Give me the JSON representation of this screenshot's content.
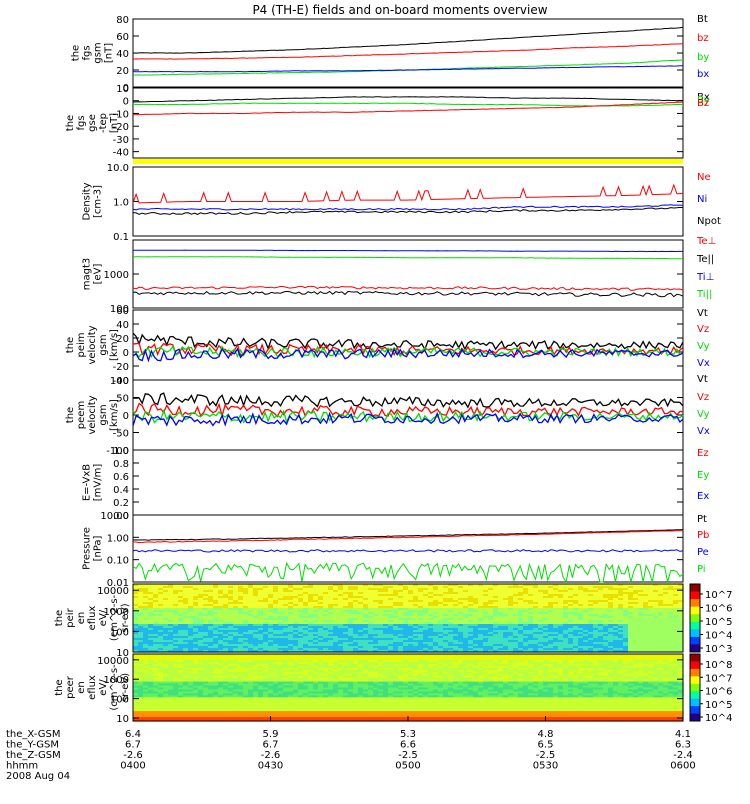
{
  "title": "P4 (TH-E) fields and on-board moments overview",
  "colors": {
    "black": "#000000",
    "red": "#ff0000",
    "green": "#00dd00",
    "blue": "#0000ff",
    "yellow": "#ffff00"
  },
  "chart_data": [
    {
      "type": "line",
      "panel": "fgs_gsm",
      "ylabel": [
        "the",
        "fgs",
        "gsm",
        "[nT]"
      ],
      "ylim": [
        0,
        80
      ],
      "ticks": [
        "80",
        "60",
        "40",
        "20",
        "0"
      ],
      "series": [
        {
          "name": "Bt",
          "color": "black",
          "values": [
            40,
            40,
            42,
            44,
            47,
            50,
            54,
            58,
            62,
            66,
            70
          ]
        },
        {
          "name": "bz",
          "color": "red",
          "values": [
            33,
            33,
            34,
            35,
            37,
            39,
            41,
            43,
            46,
            48,
            51
          ]
        },
        {
          "name": "by",
          "color": "green",
          "values": [
            14,
            15,
            16,
            17,
            18,
            20,
            22,
            24,
            26,
            28,
            32
          ]
        },
        {
          "name": "bx",
          "color": "blue",
          "values": [
            18,
            18,
            18,
            19,
            19,
            20,
            21,
            22,
            23,
            24,
            25
          ]
        }
      ]
    },
    {
      "type": "line",
      "panel": "fgs_gse",
      "ylabel": [
        "the",
        "fgs",
        "gse",
        "-tep",
        "[nT]"
      ],
      "ylim": [
        -45,
        10
      ],
      "ticks": [
        "10",
        "0",
        "-10",
        "-20",
        "-30",
        "-40"
      ],
      "series": [
        {
          "name": "Bx",
          "color": "black",
          "values": [
            -1,
            0,
            1,
            2,
            3,
            3,
            3,
            2,
            2,
            1,
            0
          ]
        },
        {
          "name": "By",
          "color": "green",
          "values": [
            -3,
            -3,
            -2,
            -2,
            -2,
            -2,
            -3,
            -3,
            -4,
            -4,
            -3
          ]
        },
        {
          "name": "Bz",
          "color": "red",
          "values": [
            -11,
            -10,
            -10,
            -9,
            -9,
            -8,
            -7,
            -6,
            -5,
            -3,
            -1
          ]
        }
      ]
    },
    {
      "type": "line",
      "panel": "density",
      "ylabel": [
        "Density",
        "[cm-3]"
      ],
      "ylog": true,
      "ylim": [
        0.1,
        10
      ],
      "ticks": [
        "10.0",
        "1.0",
        "0.1"
      ],
      "series": [
        {
          "name": "Ne",
          "color": "red",
          "values": [
            0.9,
            1.0,
            1.0,
            1.0,
            1.1,
            1.1,
            1.2,
            1.3,
            1.4,
            1.5,
            1.7
          ]
        },
        {
          "name": "Ni",
          "color": "blue",
          "values": [
            0.6,
            0.6,
            0.6,
            0.6,
            0.6,
            0.6,
            0.6,
            0.7,
            0.7,
            0.7,
            0.8
          ]
        },
        {
          "name": "Npot",
          "color": "black",
          "values": [
            0.45,
            0.45,
            0.45,
            0.5,
            0.5,
            0.5,
            0.5,
            0.55,
            0.55,
            0.6,
            0.65
          ]
        }
      ]
    },
    {
      "type": "line",
      "panel": "temperature",
      "ylabel": [
        "magt3",
        "[eV]"
      ],
      "ylog": true,
      "ylim": [
        100,
        10000
      ],
      "ticks": [
        "1000",
        "100"
      ],
      "series": [
        {
          "name": "Te⊥",
          "color": "red",
          "values": [
            380,
            390,
            400,
            410,
            400,
            390,
            390,
            380,
            370,
            360,
            350
          ]
        },
        {
          "name": "Te||",
          "color": "black",
          "values": [
            270,
            280,
            280,
            280,
            280,
            270,
            270,
            260,
            250,
            250,
            240
          ]
        },
        {
          "name": "Ti⊥",
          "color": "blue",
          "values": [
            5000,
            5000,
            5000,
            4900,
            4900,
            4800,
            4800,
            4700,
            4700,
            4600,
            4600
          ]
        },
        {
          "name": "Ti||",
          "color": "green",
          "values": [
            3200,
            3200,
            3200,
            3100,
            3100,
            3000,
            3000,
            3000,
            2900,
            2900,
            2800
          ]
        }
      ]
    },
    {
      "type": "line",
      "panel": "peim_velocity",
      "ylabel": [
        "the",
        "peim",
        "velocity",
        "gsm",
        "[km/s]"
      ],
      "ylim": [
        -40,
        60
      ],
      "ticks": [
        "60",
        "40",
        "20",
        "0",
        "-20",
        "-40"
      ],
      "series": [
        {
          "name": "Vt",
          "color": "black",
          "values": [
            20,
            15,
            12,
            12,
            11,
            10,
            10,
            10,
            10,
            10,
            10
          ]
        },
        {
          "name": "Vz",
          "color": "red",
          "values": [
            5,
            4,
            3,
            3,
            3,
            2,
            2,
            2,
            2,
            2,
            2
          ]
        },
        {
          "name": "Vy",
          "color": "green",
          "values": [
            0,
            0,
            0,
            0,
            0,
            0,
            0,
            0,
            0,
            0,
            0
          ]
        },
        {
          "name": "Vx",
          "color": "blue",
          "values": [
            -5,
            -4,
            -3,
            -3,
            -3,
            -2,
            -2,
            -2,
            -2,
            -2,
            -2
          ]
        }
      ]
    },
    {
      "type": "line",
      "panel": "peem_velocity",
      "ylabel": [
        "the",
        "peem",
        "velocity",
        "gsm",
        "[km/s]"
      ],
      "ylim": [
        -100,
        100
      ],
      "ticks": [
        "100",
        "50",
        "0",
        "-50",
        "-100"
      ],
      "series": [
        {
          "name": "Vt",
          "color": "black",
          "values": [
            45,
            45,
            40,
            40,
            38,
            38,
            35,
            35,
            35,
            35,
            35
          ]
        },
        {
          "name": "Vz",
          "color": "red",
          "values": [
            15,
            15,
            12,
            12,
            10,
            10,
            10,
            10,
            10,
            10,
            10
          ]
        },
        {
          "name": "Vy",
          "color": "green",
          "values": [
            -5,
            -5,
            -5,
            -5,
            -5,
            -5,
            -4,
            -4,
            -4,
            -4,
            -4
          ]
        },
        {
          "name": "Vx",
          "color": "blue",
          "values": [
            -15,
            -15,
            -12,
            -12,
            -10,
            -10,
            -10,
            -10,
            -10,
            -10,
            -10
          ]
        }
      ]
    },
    {
      "type": "line",
      "panel": "efield",
      "ylabel": [
        "E=-VxB",
        "[mV/m]"
      ],
      "ylim": [
        0,
        1
      ],
      "ticks": [
        "1.0",
        "0.8",
        "0.6",
        "0.4",
        "0.2",
        "0.0"
      ],
      "series": [
        {
          "name": "Ez",
          "color": "red",
          "values": []
        },
        {
          "name": "Ey",
          "color": "green",
          "values": []
        },
        {
          "name": "Ex",
          "color": "blue",
          "values": []
        }
      ]
    },
    {
      "type": "line",
      "panel": "pressure",
      "ylabel": [
        "Pressure",
        "[nPa]"
      ],
      "ylog": true,
      "ylim": [
        0.01,
        10
      ],
      "ticks": [
        "10.00",
        "1.00",
        "0.10",
        "0.01"
      ],
      "series": [
        {
          "name": "Pt",
          "color": "black",
          "values": [
            0.75,
            0.8,
            0.85,
            0.95,
            1.05,
            1.15,
            1.3,
            1.45,
            1.65,
            1.9,
            2.2
          ]
        },
        {
          "name": "Pb",
          "color": "red",
          "values": [
            0.6,
            0.65,
            0.7,
            0.8,
            0.9,
            1.0,
            1.15,
            1.3,
            1.5,
            1.75,
            2.0
          ]
        },
        {
          "name": "Pe",
          "color": "blue",
          "values": [
            0.25,
            0.25,
            0.25,
            0.25,
            0.25,
            0.25,
            0.25,
            0.25,
            0.25,
            0.25,
            0.25
          ]
        },
        {
          "name": "Pi",
          "color": "green",
          "values": [
            0.04,
            0.04,
            0.04,
            0.04,
            0.04,
            0.04,
            0.04,
            0.04,
            0.035,
            0.035,
            0.035
          ]
        }
      ]
    },
    {
      "type": "heatmap",
      "panel": "peir_en_eflux",
      "ylabel": [
        "the",
        "peir",
        "en",
        "eflux",
        "eV/",
        "(cm^2-s-",
        "sr-eV)"
      ],
      "ylog": true,
      "ylim": [
        10,
        20000
      ],
      "ticks": [
        "10000",
        "1000",
        "100",
        "10"
      ],
      "colorbar": {
        "ticks": [
          "10^7",
          "10^6",
          "10^5",
          "10^4",
          "10^3"
        ]
      }
    },
    {
      "type": "heatmap",
      "panel": "peer_en_eflux",
      "ylabel": [
        "the",
        "peer",
        "en",
        "eflux",
        "eV/",
        "(cm^2-s-",
        "sr-eV)"
      ],
      "ylog": true,
      "ylim": [
        7,
        20000
      ],
      "ticks": [
        "10000",
        "1000",
        "100",
        "10"
      ],
      "colorbar": {
        "ticks": [
          "10^8",
          "10^7",
          "10^6",
          "10^5",
          "10^4"
        ]
      }
    }
  ],
  "xaxis": {
    "rows": [
      {
        "label": "the_X-GSM",
        "values": [
          "6.4",
          "5.9",
          "5.3",
          "4.8",
          "4.1"
        ]
      },
      {
        "label": "the_Y-GSM",
        "values": [
          "6.7",
          "6.7",
          "6.6",
          "6.5",
          "6.3"
        ]
      },
      {
        "label": "the_Z-GSM",
        "values": [
          "-2.6",
          "-2.6",
          "-2.5",
          "-2.5",
          "-2.4"
        ]
      },
      {
        "label": "hhmm",
        "values": [
          "0400",
          "0430",
          "0500",
          "0530",
          "0600"
        ]
      }
    ],
    "date": "2008 Aug 04"
  }
}
